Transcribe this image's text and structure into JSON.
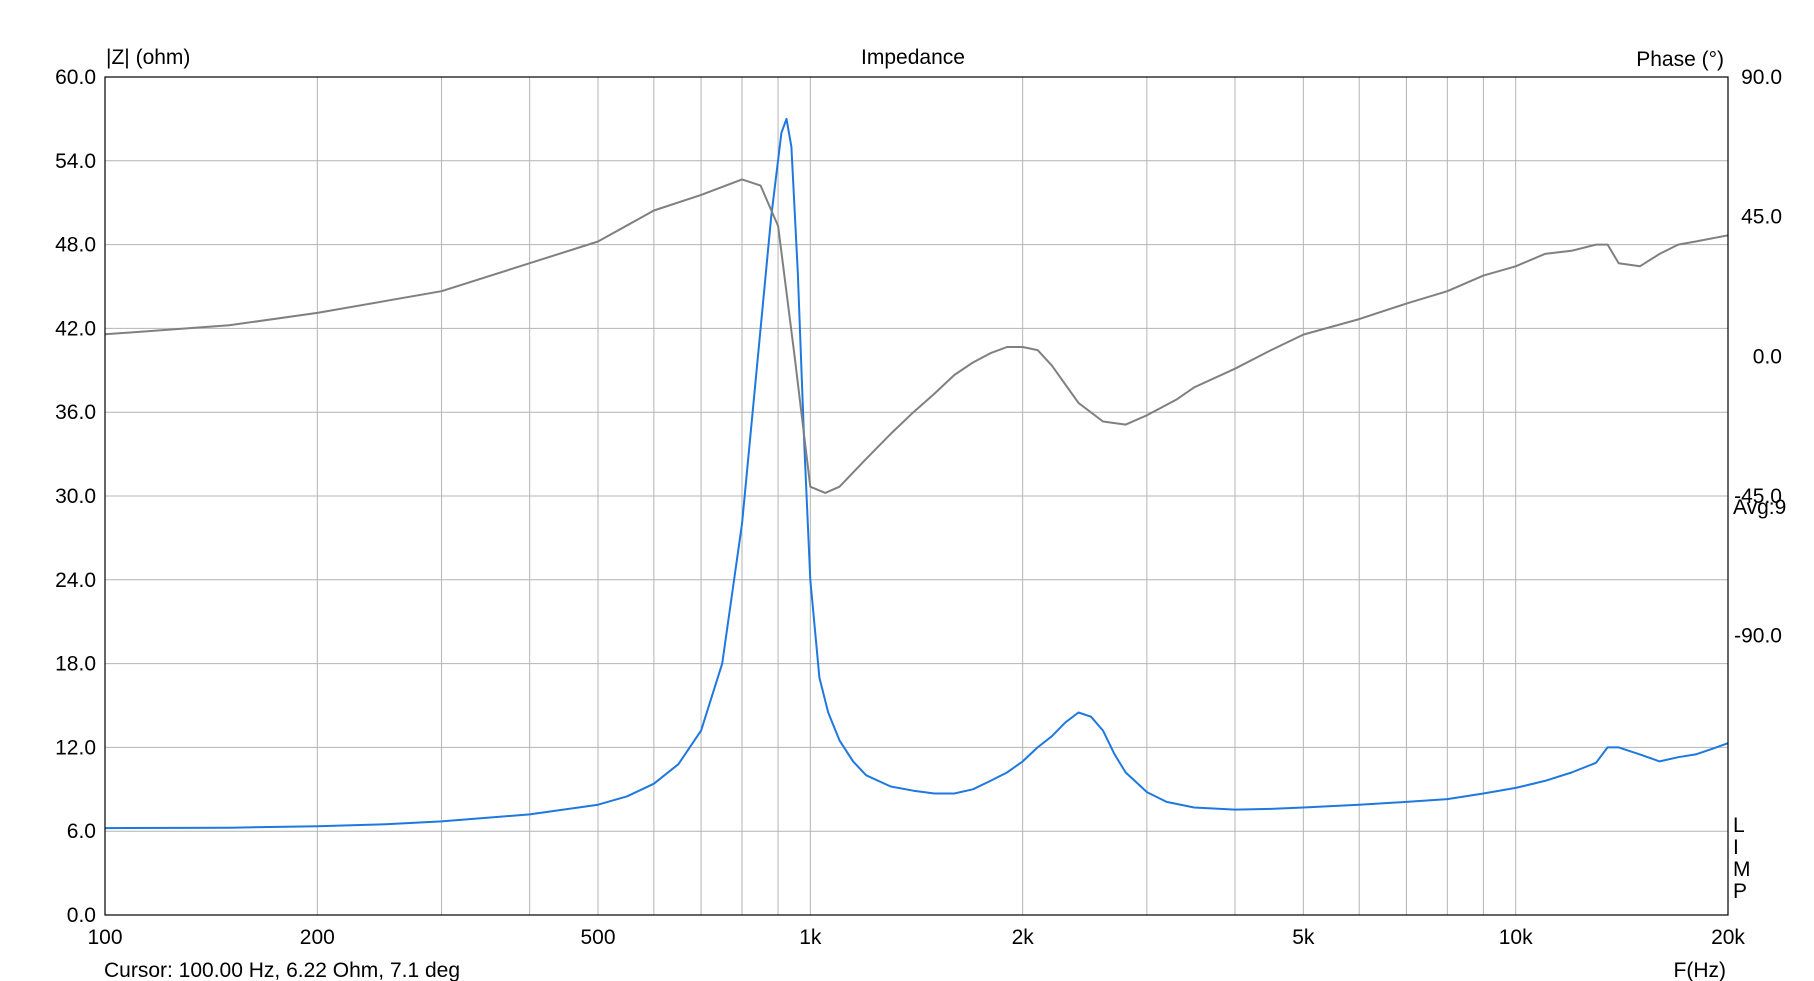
{
  "chart_data": {
    "type": "line",
    "title": "Impedance",
    "ylabel_left": "|Z| (ohm)",
    "ylabel_right": "Phase (°)",
    "xlabel": "F(Hz)",
    "x_scale": "log",
    "xlim": [
      100,
      20000
    ],
    "ylim_left": [
      0,
      60
    ],
    "ylim_right": [
      -180,
      90
    ],
    "grid": true,
    "x_tick_labels": [
      {
        "value": 100,
        "label": "100"
      },
      {
        "value": 200,
        "label": "200"
      },
      {
        "value": 500,
        "label": "500"
      },
      {
        "value": 1000,
        "label": "1k"
      },
      {
        "value": 2000,
        "label": "2k"
      },
      {
        "value": 5000,
        "label": "5k"
      },
      {
        "value": 10000,
        "label": "10k"
      },
      {
        "value": 20000,
        "label": "20k"
      }
    ],
    "y_left_ticks": [
      {
        "value": 0,
        "label": "0.0"
      },
      {
        "value": 6,
        "label": "6.0"
      },
      {
        "value": 12,
        "label": "12.0"
      },
      {
        "value": 18,
        "label": "18.0"
      },
      {
        "value": 24,
        "label": "24.0"
      },
      {
        "value": 30,
        "label": "30.0"
      },
      {
        "value": 36,
        "label": "36.0"
      },
      {
        "value": 42,
        "label": "42.0"
      },
      {
        "value": 48,
        "label": "48.0"
      },
      {
        "value": 54,
        "label": "54.0"
      },
      {
        "value": 60,
        "label": "60.0"
      }
    ],
    "y_right_ticks": [
      {
        "value": 90,
        "label": "90.0"
      },
      {
        "value": 45,
        "label": "45.0"
      },
      {
        "value": 0,
        "label": "0.0"
      },
      {
        "value": -45,
        "label": "-45.0"
      },
      {
        "value": -90,
        "label": "-90.0"
      }
    ],
    "annotations": {
      "avg": "Avg:9",
      "side_letters": [
        "L",
        "I",
        "M",
        "P"
      ],
      "cursor": "Cursor: 100.00 Hz, 6.22 Ohm, 7.1 deg"
    },
    "series": [
      {
        "color": "#1f78e0",
        "axis": "left",
        "x": [
          100,
          150,
          200,
          250,
          300,
          400,
          500,
          550,
          600,
          650,
          700,
          750,
          800,
          850,
          880,
          910,
          925,
          940,
          960,
          980,
          1000,
          1030,
          1060,
          1100,
          1150,
          1200,
          1300,
          1400,
          1500,
          1600,
          1700,
          1800,
          1900,
          2000,
          2100,
          2200,
          2300,
          2400,
          2500,
          2600,
          2700,
          2800,
          3000,
          3200,
          3500,
          4000,
          4500,
          5000,
          6000,
          7000,
          8000,
          9000,
          10000,
          11000,
          12000,
          13000,
          13500,
          14000,
          15000,
          16000,
          17000,
          18000,
          19000,
          20000
        ],
        "values": [
          6.22,
          6.25,
          6.35,
          6.5,
          6.7,
          7.2,
          7.9,
          8.5,
          9.4,
          10.8,
          13.2,
          18.0,
          28.0,
          42.0,
          50.0,
          56.0,
          57.0,
          55.0,
          46.0,
          34.0,
          24.0,
          17.0,
          14.5,
          12.5,
          11.0,
          10.0,
          9.2,
          8.9,
          8.7,
          8.7,
          9.0,
          9.6,
          10.2,
          11.0,
          12.0,
          12.8,
          13.8,
          14.5,
          14.2,
          13.2,
          11.5,
          10.2,
          8.8,
          8.1,
          7.7,
          7.55,
          7.6,
          7.7,
          7.9,
          8.1,
          8.3,
          8.7,
          9.1,
          9.6,
          10.2,
          10.9,
          12.0,
          12.0,
          11.5,
          11.0,
          11.3,
          11.5,
          11.9,
          12.3
        ]
      },
      {
        "color": "#808080",
        "axis": "right",
        "x": [
          100,
          150,
          200,
          300,
          400,
          500,
          600,
          700,
          800,
          850,
          900,
          950,
          1000,
          1050,
          1100,
          1200,
          1300,
          1400,
          1500,
          1600,
          1700,
          1800,
          1900,
          2000,
          2100,
          2200,
          2400,
          2600,
          2800,
          3000,
          3300,
          3500,
          4000,
          4500,
          5000,
          6000,
          7000,
          8000,
          9000,
          10000,
          11000,
          12000,
          13000,
          13500,
          14000,
          15000,
          16000,
          17000,
          18000,
          20000
        ],
        "values": [
          7.1,
          10,
          14,
          21,
          30,
          37,
          47,
          52,
          57,
          55,
          42,
          0,
          -42,
          -44,
          -42,
          -33,
          -25,
          -18,
          -12,
          -6,
          -2,
          1,
          3,
          3,
          2,
          -3,
          -15,
          -21,
          -22,
          -19,
          -14,
          -10,
          -4,
          2,
          7,
          12,
          17,
          21,
          26,
          29,
          33,
          34,
          36,
          36,
          30,
          29,
          33,
          36,
          37,
          39
        ]
      }
    ]
  }
}
